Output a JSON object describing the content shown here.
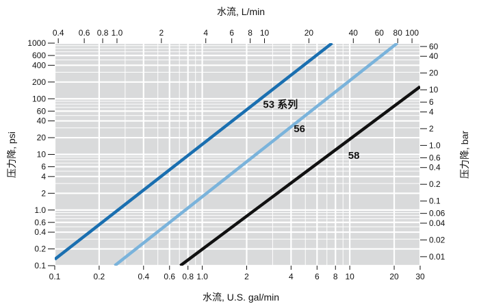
{
  "chart_data": {
    "type": "line",
    "xscale": "log",
    "yscale": "log",
    "grid": true,
    "legend": "inline labels on lines",
    "x_bottom": {
      "label": "水流, U.S. gal/min",
      "lim": [
        0.1,
        30
      ],
      "ticks": [
        0.1,
        0.2,
        0.4,
        0.6,
        0.8,
        1.0,
        2,
        4,
        6,
        8,
        10,
        20,
        30
      ],
      "tick_labels": [
        "0.1",
        "0.2",
        "0.4",
        "0.6",
        "0.8",
        "1.0",
        "2",
        "4",
        "6",
        "8",
        "10",
        "20",
        "30"
      ]
    },
    "x_top": {
      "label": "水流, L/min",
      "ticks": [
        0.4,
        0.6,
        0.8,
        1.0,
        2,
        4,
        6,
        8,
        10,
        20,
        40,
        60,
        80,
        100
      ],
      "tick_labels": [
        "0.4",
        "0.6",
        "0.8",
        "1.0",
        "2",
        "4",
        "6",
        "8",
        "10",
        "20",
        "40",
        "60",
        "80",
        "100"
      ]
    },
    "y_left": {
      "label": "压力降, psi",
      "lim": [
        0.1,
        1000
      ],
      "ticks": [
        0.1,
        0.2,
        0.4,
        0.6,
        1.0,
        2,
        4,
        6,
        10,
        20,
        40,
        60,
        100,
        200,
        400,
        600,
        1000
      ],
      "tick_labels": [
        "0.1",
        "0.2",
        "0.4",
        "0.6",
        "1.0",
        "2",
        "4",
        "6",
        "10",
        "20",
        "40",
        "60",
        "100",
        "200",
        "400",
        "600",
        "1000"
      ]
    },
    "y_right": {
      "label": "压力降, bar",
      "ticks": [
        0.01,
        0.02,
        0.04,
        0.06,
        0.1,
        0.2,
        0.4,
        0.6,
        1.0,
        2,
        4,
        6,
        10,
        20,
        40,
        60
      ],
      "tick_labels": [
        "0.01",
        "0.02",
        "0.04",
        "0.06",
        "0.1",
        "0.2",
        "0.4",
        "0.6",
        "1.0",
        "2",
        "4",
        "6",
        "10",
        "20",
        "40",
        "60"
      ]
    },
    "series": [
      {
        "name": "53 系列",
        "color": "#1a6fb0",
        "x": [
          0.1,
          7.59
        ],
        "y": [
          0.13,
          1000
        ]
      },
      {
        "name": "56",
        "color": "#7ab3db",
        "x": [
          0.255,
          21.0
        ],
        "y": [
          0.1,
          1000
        ]
      },
      {
        "name": "58",
        "color": "#111111",
        "x": [
          0.71,
          30
        ],
        "y": [
          0.1,
          165
        ]
      }
    ]
  }
}
